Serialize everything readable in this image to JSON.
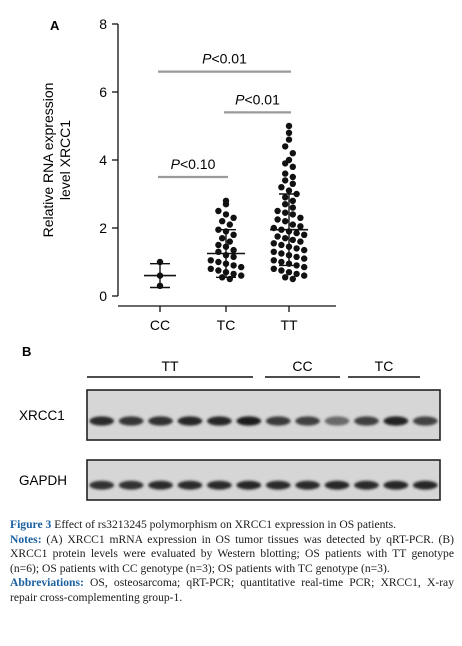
{
  "panel_a": {
    "label": "A",
    "chart_data": {
      "type": "scatter",
      "ylabel": "Relative RNA expression level XRCC1",
      "ylabel_lines": [
        "Relative RNA expression",
        "level XRCC1"
      ],
      "ylim": [
        0,
        8
      ],
      "yticks": [
        "0",
        "2",
        "4",
        "6",
        "8"
      ],
      "categories": [
        "CC",
        "TC",
        "TT"
      ],
      "summary": [
        {
          "group": "CC",
          "mean": 0.6,
          "low": 0.25,
          "high": 0.95
        },
        {
          "group": "TC",
          "mean": 1.25,
          "low": 0.55,
          "high": 1.95
        },
        {
          "group": "TT",
          "mean": 1.95,
          "low": 0.9,
          "high": 3.0
        }
      ],
      "points": {
        "CC": [
          1.0,
          0.6,
          0.3
        ],
        "TC": [
          2.8,
          2.7,
          2.5,
          2.4,
          2.3,
          2.2,
          2.1,
          1.95,
          1.9,
          1.8,
          1.7,
          1.6,
          1.5,
          1.45,
          1.35,
          1.3,
          1.2,
          1.15,
          1.05,
          1.0,
          0.95,
          0.9,
          0.85,
          0.8,
          0.75,
          0.7,
          0.65,
          0.6,
          0.55,
          0.5
        ],
        "TT": [
          5.0,
          4.8,
          4.6,
          4.4,
          4.2,
          4.0,
          3.9,
          3.8,
          3.6,
          3.5,
          3.4,
          3.3,
          3.2,
          3.1,
          3.0,
          2.9,
          2.8,
          2.7,
          2.6,
          2.5,
          2.45,
          2.4,
          2.3,
          2.25,
          2.2,
          2.1,
          2.05,
          2.0,
          1.95,
          1.9,
          1.85,
          1.8,
          1.75,
          1.7,
          1.65,
          1.6,
          1.55,
          1.5,
          1.45,
          1.4,
          1.35,
          1.3,
          1.25,
          1.2,
          1.15,
          1.1,
          1.05,
          1.0,
          0.95,
          0.9,
          0.85,
          0.8,
          0.75,
          0.7,
          0.65,
          0.6,
          0.55,
          0.5
        ]
      },
      "comparisons": [
        {
          "from": "CC",
          "to": "TC",
          "label": "P<0.10",
          "prefix": "P",
          "rest": "<0.10",
          "level": 3.5
        },
        {
          "from": "TC",
          "to": "TT",
          "label": "P<0.01",
          "prefix": "P",
          "rest": "<0.01",
          "level": 5.4
        },
        {
          "from": "CC",
          "to": "TT",
          "label": "P<0.01",
          "prefix": "P",
          "rest": "<0.01",
          "level": 6.6
        }
      ]
    }
  },
  "panel_b": {
    "label": "B",
    "groups": [
      {
        "label": "TT",
        "lanes": 6
      },
      {
        "label": "CC",
        "lanes": 3
      },
      {
        "label": "TC",
        "lanes": 3
      }
    ],
    "rows": [
      {
        "label": "XRCC1",
        "intensity": [
          0.82,
          0.78,
          0.8,
          0.86,
          0.85,
          0.9,
          0.74,
          0.72,
          0.5,
          0.72,
          0.88,
          0.7
        ]
      },
      {
        "label": "GAPDH",
        "intensity": [
          0.8,
          0.8,
          0.82,
          0.82,
          0.82,
          0.84,
          0.82,
          0.82,
          0.84,
          0.82,
          0.84,
          0.84
        ]
      }
    ]
  },
  "caption": {
    "figure_label": "Figure 3",
    "title": "Effect of rs3213245 polymorphism on XRCC1 expression in OS patients.",
    "notes_label": "Notes:",
    "notes": "(A) XRCC1 mRNA expression in OS tumor tissues was detected by qRT-PCR. (B) XRCC1 protein levels were evaluated by Western blotting; OS patients with TT genotype (n=6); OS patients with CC genotype (n=3); OS patients with TC genotype (n=3).",
    "abbreviations_label": "Abbreviations:",
    "abbreviations": "OS, osteosarcoma; qRT-PCR; quantitative real-time PCR; XRCC1, X-ray repair cross-complementing group-1."
  }
}
